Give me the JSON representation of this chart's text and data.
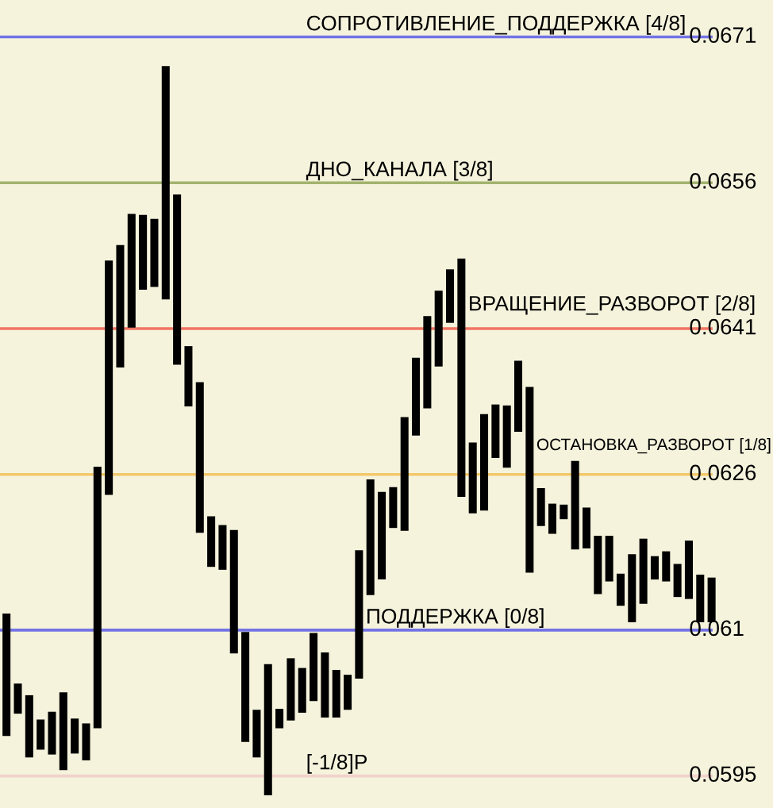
{
  "chart_data": {
    "type": "bar",
    "categories": [
      null,
      null,
      null,
      null,
      null,
      null,
      null,
      null,
      null,
      null,
      null,
      null,
      null,
      null,
      null,
      null,
      null,
      null,
      null,
      null,
      null,
      null,
      null,
      null,
      null,
      null,
      null,
      null,
      null,
      null,
      null,
      null,
      null,
      null,
      null,
      null,
      null,
      null,
      null,
      null,
      null,
      null,
      null,
      null,
      null,
      null,
      null,
      null,
      null,
      null,
      null,
      null,
      null,
      null,
      null,
      null,
      null,
      null,
      null,
      null,
      null,
      null,
      null
    ],
    "base": [
      0.05991,
      0.06014,
      0.05969,
      0.05977,
      0.05972,
      0.05956,
      0.05973,
      0.05966,
      0.05999,
      0.06239,
      0.0637,
      0.06411,
      0.0645,
      0.06453,
      0.0644,
      0.06373,
      0.0633,
      0.062,
      0.06165,
      0.06162,
      0.06076,
      0.05985,
      0.05969,
      0.0593,
      0.05999,
      0.06007,
      0.06015,
      0.06027,
      0.0601,
      0.0601,
      0.06018,
      0.0605,
      0.06136,
      0.06152,
      0.06205,
      0.06202,
      0.063,
      0.06328,
      0.06371,
      0.06416,
      0.06237,
      0.0622,
      0.06223,
      0.06277,
      0.06267,
      0.06304,
      0.06159,
      0.06207,
      0.06199,
      0.06214,
      0.06183,
      0.06184,
      0.06137,
      0.0615,
      0.06125,
      0.06108,
      0.06127,
      0.06152,
      0.0615,
      0.06134,
      0.06132,
      0.06108,
      0.06108
    ],
    "values": [
      0.00126,
      0.00031,
      0.00064,
      0.00031,
      0.00044,
      0.0008,
      0.00036,
      0.00038,
      0.00269,
      0.00241,
      0.00126,
      0.00117,
      0.00077,
      0.0007,
      0.0024,
      0.00175,
      0.00062,
      0.00155,
      0.00052,
      0.00046,
      0.00127,
      0.00113,
      0.00049,
      0.00135,
      0.0002,
      0.00064,
      0.00046,
      0.0007,
      0.00067,
      0.00049,
      0.00036,
      0.00132,
      0.00119,
      0.0009,
      0.00042,
      0.00117,
      0.0008,
      0.00095,
      0.00078,
      0.00055,
      0.00245,
      0.00073,
      0.00099,
      0.00055,
      0.00064,
      0.00073,
      0.00191,
      0.00039,
      0.00031,
      0.00015,
      0.00091,
      0.00042,
      0.0006,
      0.00047,
      0.00033,
      0.0007,
      0.00067,
      0.00024,
      0.00031,
      0.00034,
      0.0006,
      0.00049,
      0.00046
    ],
    "color": "#000000",
    "ylim": [
      0.05917,
      0.06748
    ],
    "yticks": [
      0.0595,
      0.061,
      0.0626,
      0.0641,
      0.0656,
      0.0671
    ],
    "tick_labels": "y",
    "grid": false,
    "legend": false,
    "ref_lines": [
      {
        "axis": "y",
        "value": 0.0671,
        "label": "СОПРОТИВЛЕНИЕ_ПОДДЕРЖКА [4/8]",
        "color": "#7373e6"
      },
      {
        "axis": "y",
        "value": 0.0656,
        "label": "ДНО_КАНАЛА [3/8]",
        "color": "#a3b46e"
      },
      {
        "axis": "y",
        "value": 0.0641,
        "label": "ВРАЩЕНИЕ_РАЗВОРОТ [2/8]",
        "color": "#f07563"
      },
      {
        "axis": "y",
        "value": 0.0626,
        "label": "ОСТАНОВКА_РАЗВОРОТ [1/8]",
        "color": "#f3c76b"
      },
      {
        "axis": "y",
        "value": 0.061,
        "label": "ПОДДЕРЖКА [0/8]",
        "color": "#7373e6"
      },
      {
        "axis": "y",
        "value": 0.0595,
        "label": "[-1/8]P",
        "color": "#f2d2cc"
      }
    ]
  }
}
